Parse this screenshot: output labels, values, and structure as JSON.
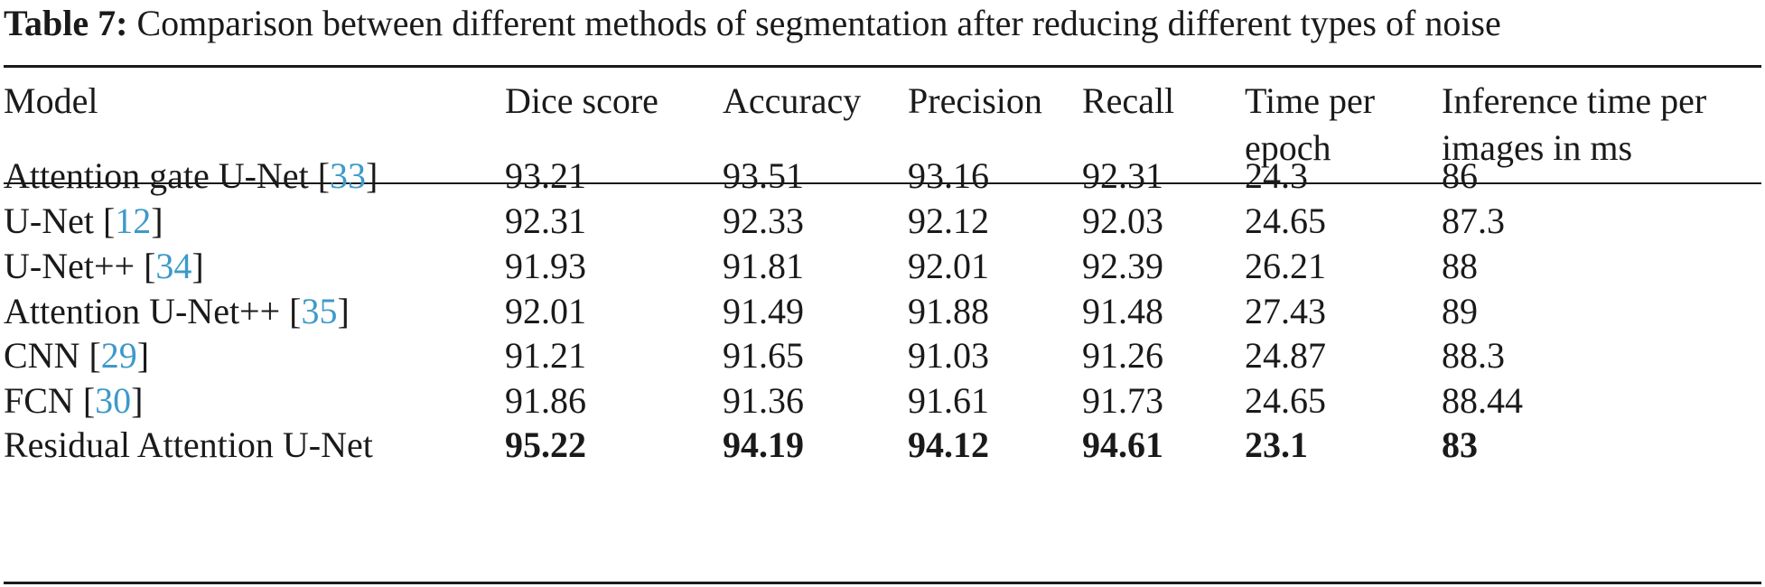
{
  "caption": {
    "label": "Table 7:",
    "text": " Comparison between different methods of segmentation after reducing different types of noise"
  },
  "table": {
    "headers": [
      {
        "line1": "Model",
        "line2": ""
      },
      {
        "line1": "Dice score",
        "line2": ""
      },
      {
        "line1": "Accuracy",
        "line2": ""
      },
      {
        "line1": "Precision",
        "line2": ""
      },
      {
        "line1": "Recall",
        "line2": ""
      },
      {
        "line1": "Time per",
        "line2": "epoch"
      },
      {
        "line1": "Inference time per",
        "line2": "images in ms"
      }
    ],
    "rows": [
      {
        "model": "Attention gate U-Net",
        "ref": "33",
        "bold": false,
        "values": [
          "93.21",
          "93.51",
          "93.16",
          "92.31",
          "24.3",
          "86"
        ]
      },
      {
        "model": "U-Net",
        "ref": "12",
        "bold": false,
        "values": [
          "92.31",
          "92.33",
          "92.12",
          "92.03",
          "24.65",
          "87.3"
        ]
      },
      {
        "model": "U-Net++",
        "ref": "34",
        "bold": false,
        "values": [
          "91.93",
          "91.81",
          "92.01",
          "92.39",
          "26.21",
          "88"
        ]
      },
      {
        "model": "Attention U-Net++",
        "ref": "35",
        "bold": false,
        "values": [
          "92.01",
          "91.49",
          "91.88",
          "91.48",
          "27.43",
          "89"
        ]
      },
      {
        "model": "CNN",
        "ref": "29",
        "bold": false,
        "values": [
          "91.21",
          "91.65",
          "91.03",
          "91.26",
          "24.87",
          "88.3"
        ]
      },
      {
        "model": "FCN",
        "ref": "30",
        "bold": false,
        "values": [
          "91.86",
          "91.36",
          "91.61",
          "91.73",
          "24.65",
          "88.44"
        ]
      },
      {
        "model": "Residual Attention U-Net",
        "ref": "",
        "bold": true,
        "values": [
          "95.22",
          "94.19",
          "94.12",
          "94.61",
          "23.1",
          "83"
        ]
      }
    ]
  }
}
